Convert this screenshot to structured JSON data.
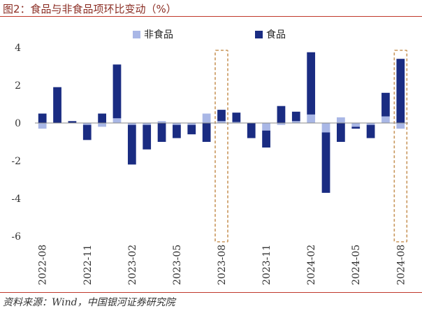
{
  "figure": {
    "title": "图2：食品与非食品项环比变动（%）",
    "source": "资料来源：Wind，中国银河证券研究院"
  },
  "colors": {
    "food": "#1a2c82",
    "nonfood": "#a9b7e6",
    "highlight": "#c8955a",
    "axis": "#888888",
    "title_rule": "#c0392b"
  },
  "chart_data": {
    "type": "bar",
    "stacked": true,
    "categories": [
      "2022-08",
      "2022-09",
      "2022-10",
      "2022-11",
      "2022-12",
      "2023-01",
      "2023-02",
      "2023-03",
      "2023-04",
      "2023-05",
      "2023-06",
      "2023-07",
      "2023-08",
      "2023-09",
      "2023-10",
      "2023-11",
      "2023-12",
      "2024-01",
      "2024-02",
      "2024-03",
      "2024-04",
      "2024-05",
      "2024-06",
      "2024-07",
      "2024-08"
    ],
    "x_tick_labels": [
      "2022-08",
      "2022-11",
      "2023-02",
      "2023-05",
      "2023-08",
      "2023-11",
      "2024-02",
      "2024-05",
      "2024-08"
    ],
    "x_tick_indices": [
      0,
      3,
      6,
      9,
      12,
      15,
      18,
      21,
      24
    ],
    "series": [
      {
        "name": "非食品",
        "key": "nonfood",
        "values": [
          -0.3,
          0.0,
          0.0,
          -0.1,
          -0.2,
          0.25,
          -0.1,
          -0.1,
          0.1,
          -0.1,
          -0.1,
          0.5,
          0.1,
          0.05,
          0.0,
          -0.4,
          -0.1,
          0.1,
          0.45,
          -0.5,
          0.3,
          -0.2,
          -0.1,
          0.35,
          -0.3
        ]
      },
      {
        "name": "食品",
        "key": "food",
        "values": [
          0.5,
          1.9,
          0.1,
          -0.8,
          0.5,
          2.85,
          -2.1,
          -1.3,
          -1.0,
          -0.7,
          -0.5,
          -1.0,
          0.6,
          0.5,
          -0.8,
          -0.9,
          0.9,
          0.5,
          3.3,
          -3.2,
          -1.0,
          -0.1,
          -0.7,
          1.25,
          3.4
        ]
      }
    ],
    "legend": [
      "非食品",
      "食品"
    ],
    "legend_position": "top",
    "ylim": [
      -6,
      4
    ],
    "yticks": [
      -6,
      -4,
      -2,
      0,
      2,
      4
    ],
    "grid": false,
    "highlight_categories": [
      "2023-08",
      "2024-08"
    ],
    "xlabel": "",
    "ylabel": ""
  }
}
